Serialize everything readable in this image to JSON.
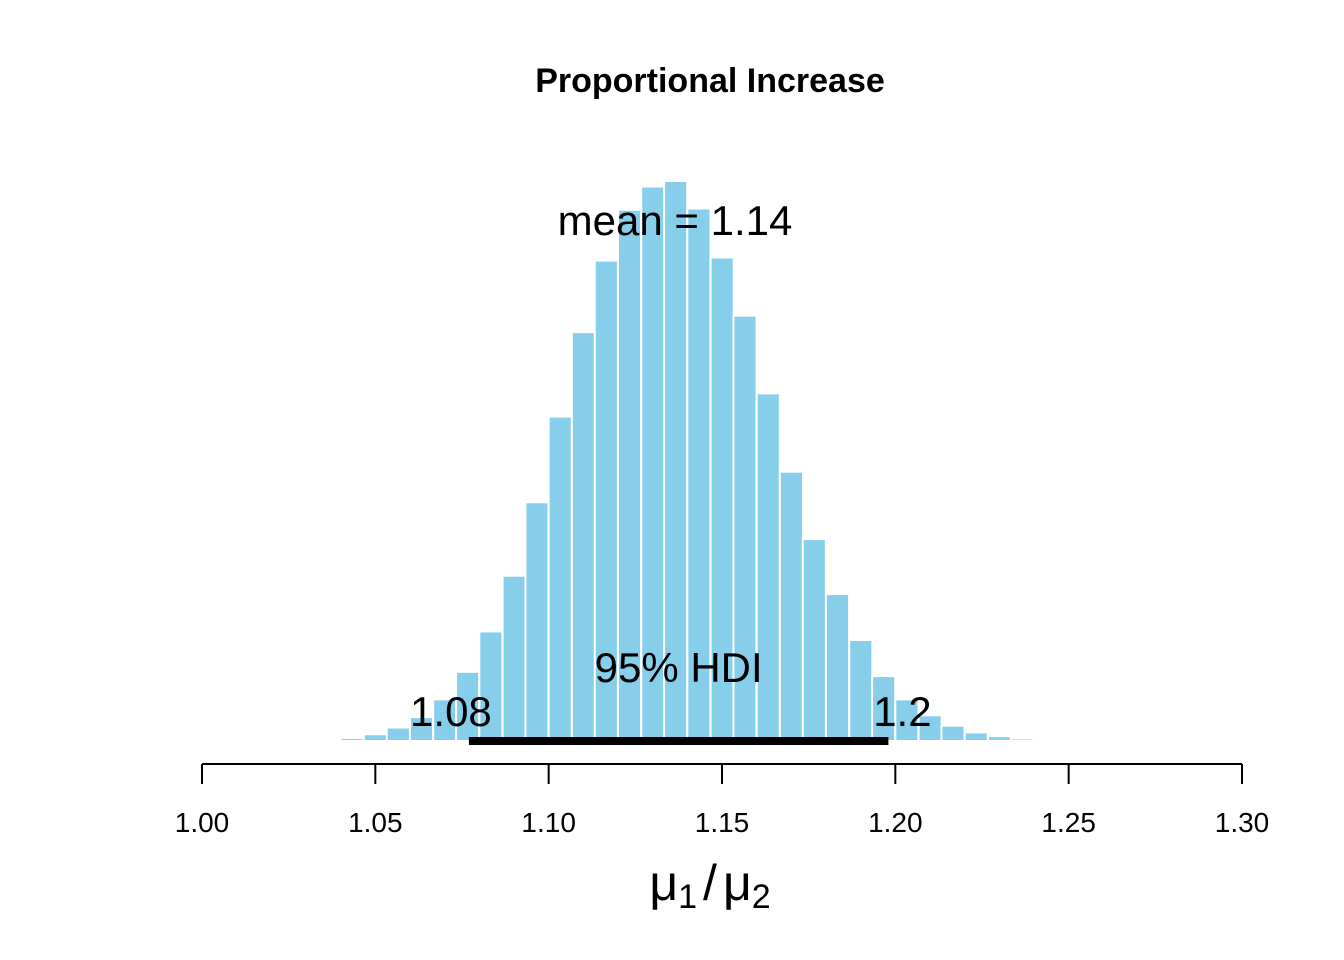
{
  "chart_data": {
    "type": "bar",
    "title": "Proportional Increase",
    "xlabel": {
      "mu": "μ",
      "sub1": "1",
      "slash": "/",
      "sub2": "2"
    },
    "ylabel": "",
    "xlim": [
      1.0,
      1.3
    ],
    "xticks": [
      1.0,
      1.05,
      1.1,
      1.15,
      1.2,
      1.25,
      1.3
    ],
    "xtick_labels": [
      "1.00",
      "1.05",
      "1.10",
      "1.15",
      "1.20",
      "1.25",
      "1.30"
    ],
    "bin_width": 0.006667,
    "bins": [
      {
        "start": 1.0333,
        "value": 1
      },
      {
        "start": 1.04,
        "value": 5
      },
      {
        "start": 1.0467,
        "value": 11
      },
      {
        "start": 1.0533,
        "value": 22
      },
      {
        "start": 1.06,
        "value": 39
      },
      {
        "start": 1.0667,
        "value": 68
      },
      {
        "start": 1.0733,
        "value": 113
      },
      {
        "start": 1.08,
        "value": 179
      },
      {
        "start": 1.0867,
        "value": 270
      },
      {
        "start": 1.0933,
        "value": 390
      },
      {
        "start": 1.1,
        "value": 530
      },
      {
        "start": 1.1067,
        "value": 668
      },
      {
        "start": 1.1133,
        "value": 785
      },
      {
        "start": 1.12,
        "value": 868
      },
      {
        "start": 1.1267,
        "value": 906
      },
      {
        "start": 1.1333,
        "value": 915
      },
      {
        "start": 1.14,
        "value": 870
      },
      {
        "start": 1.1467,
        "value": 790
      },
      {
        "start": 1.1533,
        "value": 695
      },
      {
        "start": 1.16,
        "value": 568
      },
      {
        "start": 1.1667,
        "value": 440
      },
      {
        "start": 1.1733,
        "value": 330
      },
      {
        "start": 1.18,
        "value": 240
      },
      {
        "start": 1.1867,
        "value": 165
      },
      {
        "start": 1.1933,
        "value": 106
      },
      {
        "start": 1.2,
        "value": 68
      },
      {
        "start": 1.2067,
        "value": 42
      },
      {
        "start": 1.2133,
        "value": 25
      },
      {
        "start": 1.22,
        "value": 14
      },
      {
        "start": 1.2267,
        "value": 8
      },
      {
        "start": 1.2333,
        "value": 4
      },
      {
        "start": 1.24,
        "value": 2
      },
      {
        "start": 1.2467,
        "value": 1
      }
    ],
    "mean_label": "mean = 1.14",
    "hdi": {
      "label": "95% HDI",
      "low": 1.077,
      "high": 1.198,
      "low_label": "1.08",
      "high_label": "1.2"
    },
    "bar_color": "#87CEEB",
    "bar_edge_color": "#ffffff"
  }
}
